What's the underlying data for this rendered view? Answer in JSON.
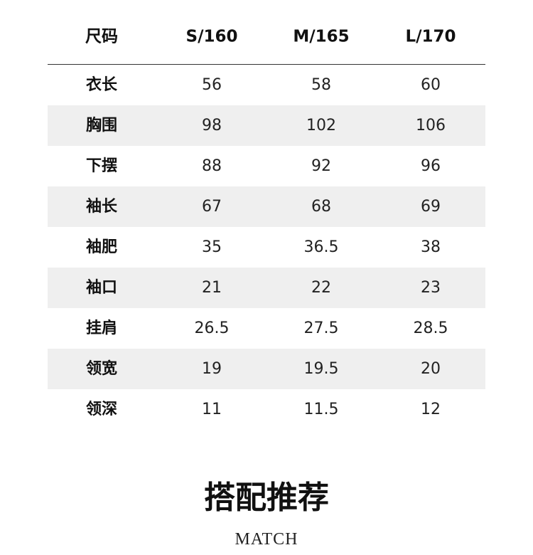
{
  "table": {
    "header": [
      "尺码",
      "S/160",
      "M/165",
      "L/170"
    ],
    "rows": [
      [
        "衣长",
        56,
        58,
        60
      ],
      [
        "胸围",
        98,
        102,
        106
      ],
      [
        "下摆",
        88,
        92,
        96
      ],
      [
        "袖长",
        67,
        68,
        69
      ],
      [
        "袖肥",
        35,
        36.5,
        38
      ],
      [
        "袖口",
        21,
        22,
        23
      ],
      [
        "挂肩",
        26.5,
        27.5,
        28.5
      ],
      [
        "领宽",
        19,
        19.5,
        20
      ],
      [
        "领深",
        11,
        11.5,
        12
      ]
    ]
  },
  "section": {
    "title": "搭配推荐",
    "subtitle": "MATCH"
  }
}
